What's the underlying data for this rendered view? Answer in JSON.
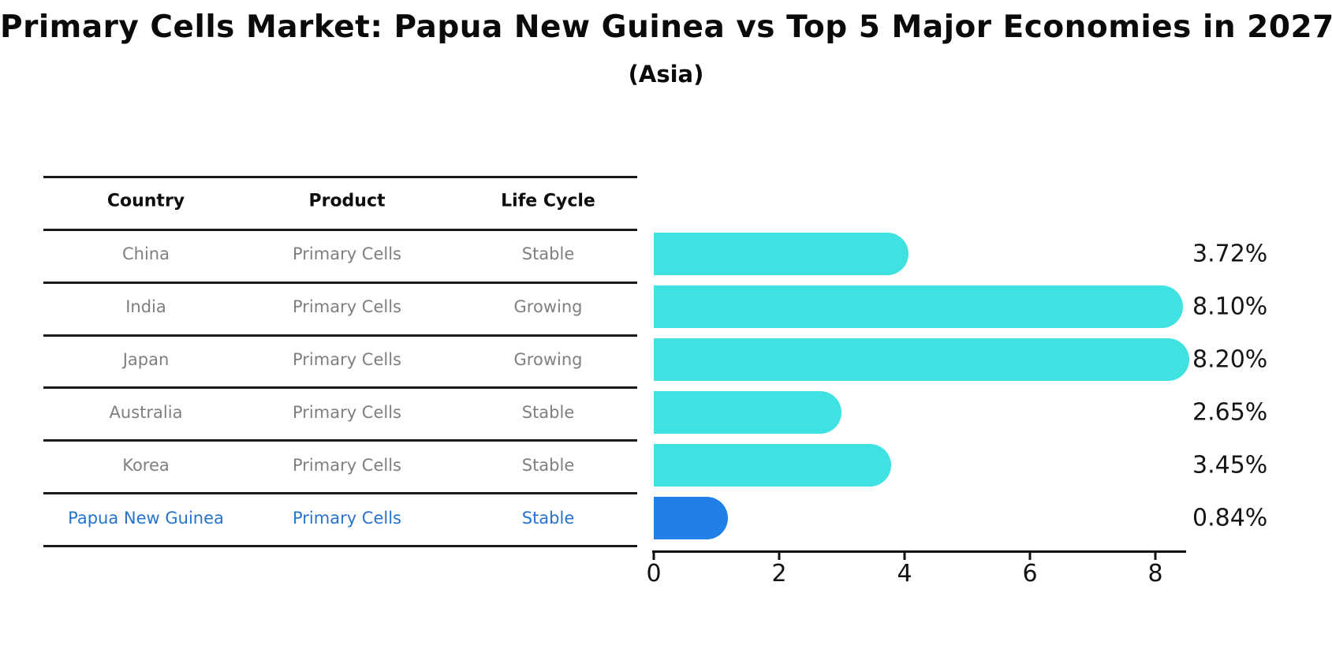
{
  "title": "Primary Cells Market: Papua New Guinea vs Top 5 Major Economies in 2027",
  "subtitle": "(Asia)",
  "table": {
    "headers": [
      "Country",
      "Product",
      "Life Cycle"
    ],
    "rows": [
      {
        "country": "China",
        "product": "Primary Cells",
        "life_cycle": "Stable",
        "highlight": false
      },
      {
        "country": "India",
        "product": "Primary Cells",
        "life_cycle": "Growing",
        "highlight": false
      },
      {
        "country": "Japan",
        "product": "Primary Cells",
        "life_cycle": "Growing",
        "highlight": false
      },
      {
        "country": "Australia",
        "product": "Primary Cells",
        "life_cycle": "Stable",
        "highlight": false
      },
      {
        "country": "Korea",
        "product": "Primary Cells",
        "life_cycle": "Stable",
        "highlight": false
      },
      {
        "country": "Papua New Guinea",
        "product": "Primary Cells",
        "life_cycle": "Stable",
        "highlight": true
      }
    ]
  },
  "chart_data": {
    "type": "bar",
    "orientation": "horizontal",
    "categories": [
      "China",
      "India",
      "Japan",
      "Australia",
      "Korea",
      "Papua New Guinea"
    ],
    "values": [
      3.72,
      8.1,
      8.2,
      2.65,
      3.45,
      0.84
    ],
    "value_labels": [
      "3.72%",
      "8.10%",
      "8.20%",
      "2.65%",
      "3.45%",
      "0.84%"
    ],
    "x_ticks": [
      "0",
      "2",
      "4",
      "6",
      "8"
    ],
    "x_tick_values": [
      0,
      2,
      4,
      6,
      8
    ],
    "xlim": [
      0,
      8.5
    ],
    "grid": false,
    "legend": false,
    "highlight_index": 5
  },
  "colors": {
    "bar": "#40e1e1",
    "highlight_bar": "#2080e8",
    "highlight_text": "#2573ce",
    "text": "#0a0a0a",
    "muted_text": "#7f7f7f"
  }
}
